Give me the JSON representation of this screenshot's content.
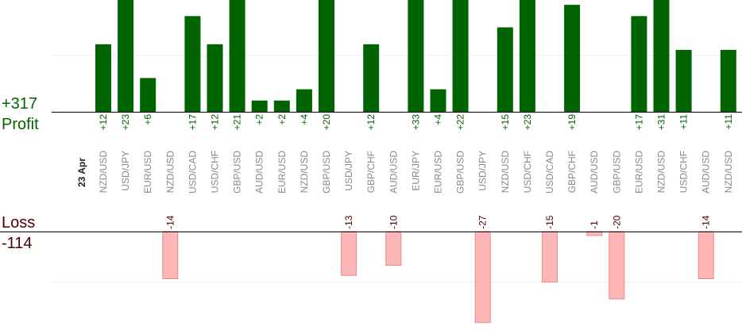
{
  "summary": {
    "profit_total": "+317",
    "profit_label": "Profit",
    "loss_label": "Loss",
    "loss_total": "-114"
  },
  "colors": {
    "profit_bar": "#006400",
    "profit_text": "#006400",
    "loss_bar": "#ffb6b6",
    "loss_bar_border": "#e88888",
    "loss_text": "#4a0000",
    "pair_text": "#888888",
    "date_text": "#222222"
  },
  "chart_data": {
    "type": "bar",
    "date_label": "23 Apr",
    "categories": [
      "NZD/USD",
      "USD/JPY",
      "EUR/USD",
      "NZD/USD",
      "USD/CAD",
      "USD/CHF",
      "GBP/USD",
      "AUD/USD",
      "EUR/USD",
      "NZD/USD",
      "GBP/USD",
      "USD/JPY",
      "GBP/CHF",
      "AUD/USD",
      "EUR/JPY",
      "EUR/USD",
      "GBP/USD",
      "USD/JPY",
      "NZD/USD",
      "USD/CHF",
      "USD/CAD",
      "GBP/CHF",
      "AUD/USD",
      "GBP/USD",
      "EUR/USD",
      "NZD/USD",
      "USD/CHF",
      "AUD/USD",
      "NZD/USD"
    ],
    "values": [
      12,
      23,
      6,
      -14,
      17,
      12,
      21,
      2,
      2,
      4,
      20,
      -13,
      12,
      -10,
      33,
      4,
      22,
      -27,
      15,
      23,
      -15,
      19,
      -1,
      -20,
      17,
      31,
      11,
      -14,
      11
    ],
    "value_labels": [
      "+12",
      "+23",
      "+6",
      "-14",
      "+17",
      "+12",
      "+21",
      "+2",
      "+2",
      "+4",
      "+20",
      "-13",
      "+12",
      "-10",
      "+33",
      "+4",
      "+22",
      "-27",
      "+15",
      "+23",
      "-15",
      "+19",
      "-1",
      "-20",
      "+17",
      "+31",
      "+11",
      "-14",
      "+11"
    ],
    "grid": true
  }
}
